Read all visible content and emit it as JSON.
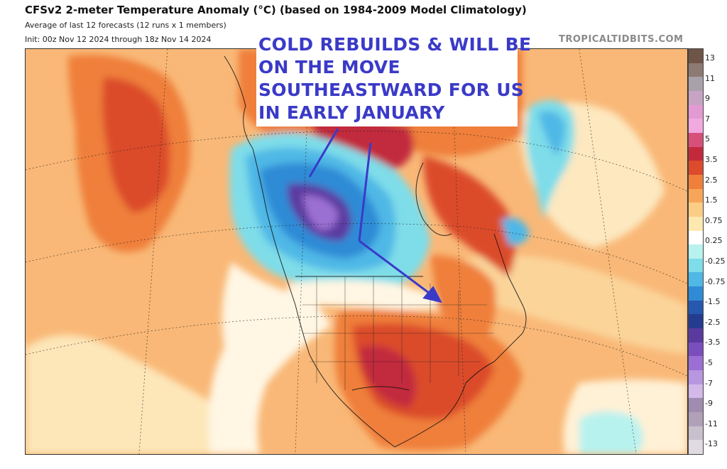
{
  "header": {
    "title": "CFSv2 2-meter Temperature Anomaly (°C) (based on 1984-2009 Model Climatology)",
    "subtitle_average": "Average of last 12 forecasts (12 runs x 1 members)",
    "subtitle_init": "Init: 00z Nov 12 2024 through 18z Nov 14 2024",
    "source": "TROPICALTIDBITS.COM"
  },
  "annotation": {
    "lines": [
      "COLD REBUILDS & WILL BE",
      "ON THE MOVE",
      "SOUTHEASTWARD FOR US",
      "IN EARLY JANUARY"
    ],
    "color": "#3a3ac8"
  },
  "legend": {
    "labels": [
      "13",
      "11",
      "9",
      "7",
      "5",
      "3.5",
      "2.5",
      "1.5",
      "0.75",
      "0.25",
      "-0.25",
      "-0.75",
      "-1.5",
      "-2.5",
      "-3.5",
      "-5",
      "-7",
      "-9",
      "-11",
      "-13"
    ],
    "colors": [
      "#6e5548",
      "#8d7a72",
      "#a9a1aa",
      "#c8a4c4",
      "#e39ad3",
      "#f1a9e0",
      "#d7507a",
      "#c22a3c",
      "#db4b2c",
      "#ef7f3a",
      "#f7a659",
      "#fbcd86",
      "#fde9b0",
      "#ffffff",
      "#b8f2ef",
      "#7edde9",
      "#4fb8e6",
      "#2f8bd6",
      "#2758b0",
      "#243c8f",
      "#5b3aa0",
      "#7a4fbd",
      "#9b6fd3",
      "#b896e0",
      "#d3b8ea",
      "#a08cb0",
      "#b0a0b8",
      "#c8c0cc",
      "#e0dae2"
    ]
  }
}
